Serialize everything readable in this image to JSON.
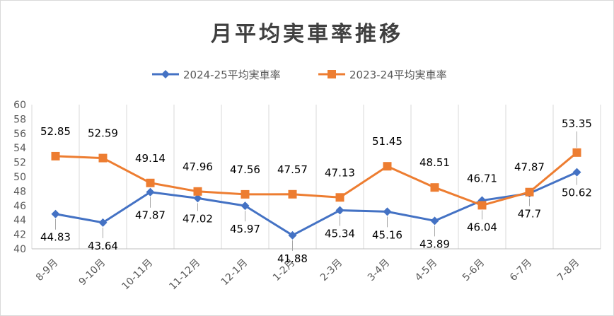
{
  "chart_data": {
    "type": "line",
    "title": "月平均実車率推移",
    "categories": [
      "8-9月",
      "9-10月",
      "10-11月",
      "11-12月",
      "12-1月",
      "1-2月",
      "2-3月",
      "3-4月",
      "4-5月",
      "5-6月",
      "6-7月",
      "7-8月"
    ],
    "series": [
      {
        "name": "2024-25平均実車率",
        "color": "#4472c4",
        "marker": "diamond",
        "values": [
          44.83,
          43.64,
          47.87,
          47.02,
          45.97,
          41.88,
          45.34,
          45.16,
          43.89,
          46.71,
          47.7,
          50.62
        ],
        "labels": [
          "44.83",
          "43.64",
          "47.87",
          "47.02",
          "45.97",
          "41.88",
          "45.34",
          "45.16",
          "43.89",
          "46.71",
          "47.7",
          "50.62"
        ]
      },
      {
        "name": "2023-24平均実車率",
        "color": "#ed7d31",
        "marker": "square",
        "values": [
          52.85,
          52.59,
          49.14,
          47.96,
          47.56,
          47.57,
          47.13,
          51.45,
          48.51,
          46.04,
          47.87,
          53.35
        ],
        "labels": [
          "52.85",
          "52.59",
          "49.14",
          "47.96",
          "47.56",
          "47.57",
          "47.13",
          "51.45",
          "48.51",
          "46.04",
          "47.87",
          "53.35"
        ]
      }
    ],
    "ylim": [
      40,
      60
    ],
    "ytick_step": 2,
    "grid": "vertical",
    "legend_position": "top"
  }
}
